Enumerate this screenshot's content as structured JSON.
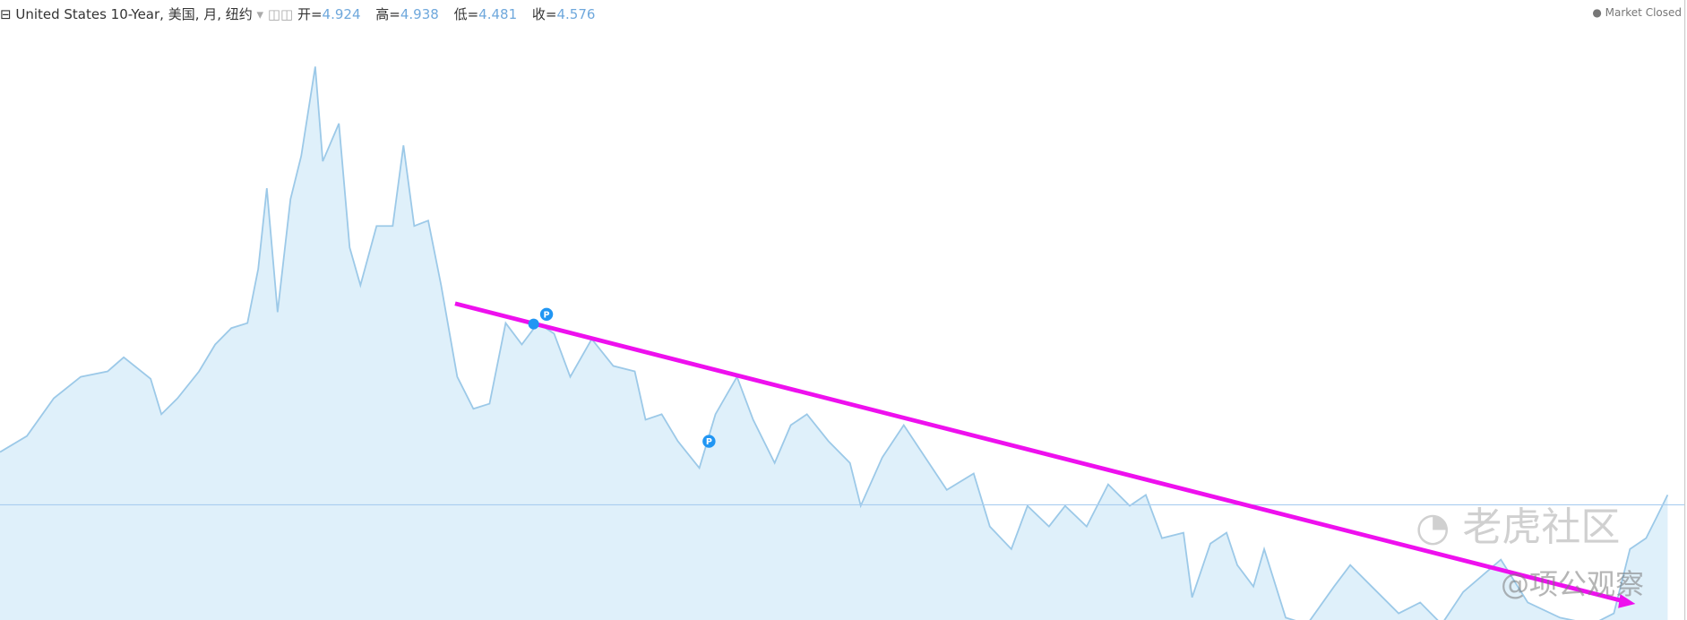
{
  "header": {
    "symbol": "United States 10-Year, 美国, 月, 纽约",
    "ohlc": [
      {
        "label": "开=",
        "value": 4.924
      },
      {
        "label": "高=",
        "value": 4.938
      },
      {
        "label": "低=",
        "value": 4.481
      },
      {
        "label": "收=",
        "value": 4.576
      }
    ],
    "status": "Market Closed"
  },
  "watermark": {
    "brand": "老虎社区",
    "author": "@项公观察"
  },
  "chart_data": {
    "type": "area",
    "color": "#9cc9e8",
    "fill": "#dff0fa",
    "xlim": [
      1962,
      2024.72
    ],
    "ylim": [
      1.62,
      17.53
    ],
    "x": [
      1962,
      1963,
      1964,
      1965,
      1966,
      1966.6,
      1967.6,
      1968,
      1968.6,
      1969.4,
      1970,
      1970.6,
      1971.2,
      1971.6,
      1971.92,
      1972.32,
      1972.8,
      1973.2,
      1973.72,
      1974,
      1974.6,
      1975,
      1975.4,
      1976,
      1976.6,
      1977,
      1977.4,
      1977.92,
      1978.4,
      1979,
      1979.6,
      1980.2,
      1980.8,
      1981.4,
      1982,
      1982.6,
      1983.2,
      1984,
      1984.8,
      1985.6,
      1986,
      1986.6,
      1987.2,
      1988,
      1988.6,
      1989.4,
      1990,
      1990.8,
      1991.4,
      1992,
      1992.8,
      1993.6,
      1994,
      1994.8,
      1995.6,
      1996.4,
      1997.2,
      1998.2,
      1998.8,
      1999.6,
      2000.2,
      2001,
      2001.6,
      2002.4,
      2003.2,
      2004,
      2004.6,
      2005.2,
      2006,
      2006.32,
      2007,
      2007.6,
      2008,
      2008.6,
      2009,
      2009.8,
      2010.6,
      2011.6,
      2012.2,
      2013.2,
      2014,
      2014.8,
      2015.6,
      2016.4,
      2017.8,
      2018.8,
      2020,
      2021.2,
      2022,
      2022.6,
      2023.2,
      2023.6,
      2024
    ],
    "values": [
      5.93,
      6.34,
      7.31,
      7.86,
      8.0,
      8.36,
      7.81,
      6.9,
      7.31,
      8.0,
      8.69,
      9.11,
      9.24,
      10.63,
      12.7,
      9.52,
      12.42,
      13.53,
      15.82,
      13.39,
      14.36,
      11.18,
      10.21,
      11.73,
      11.73,
      13.8,
      11.73,
      11.87,
      10.21,
      7.86,
      7.04,
      7.17,
      9.24,
      8.69,
      9.24,
      8.97,
      7.86,
      8.83,
      8.14,
      8.0,
      6.76,
      6.9,
      6.21,
      5.52,
      6.9,
      7.86,
      6.76,
      5.65,
      6.62,
      6.9,
      6.21,
      5.65,
      4.55,
      5.79,
      6.62,
      5.79,
      4.96,
      5.38,
      4.02,
      3.44,
      4.55,
      4.02,
      4.55,
      4.02,
      5.1,
      4.55,
      4.83,
      3.72,
      3.86,
      2.2,
      3.58,
      3.86,
      3.03,
      2.48,
      3.44,
      1.68,
      1.51,
      2.48,
      3.03,
      2.34,
      1.79,
      2.07,
      1.51,
      2.34,
      3.17,
      2.07,
      1.68,
      1.51,
      1.79,
      3.44,
      3.72,
      4.27,
      4.83
    ]
  }
}
